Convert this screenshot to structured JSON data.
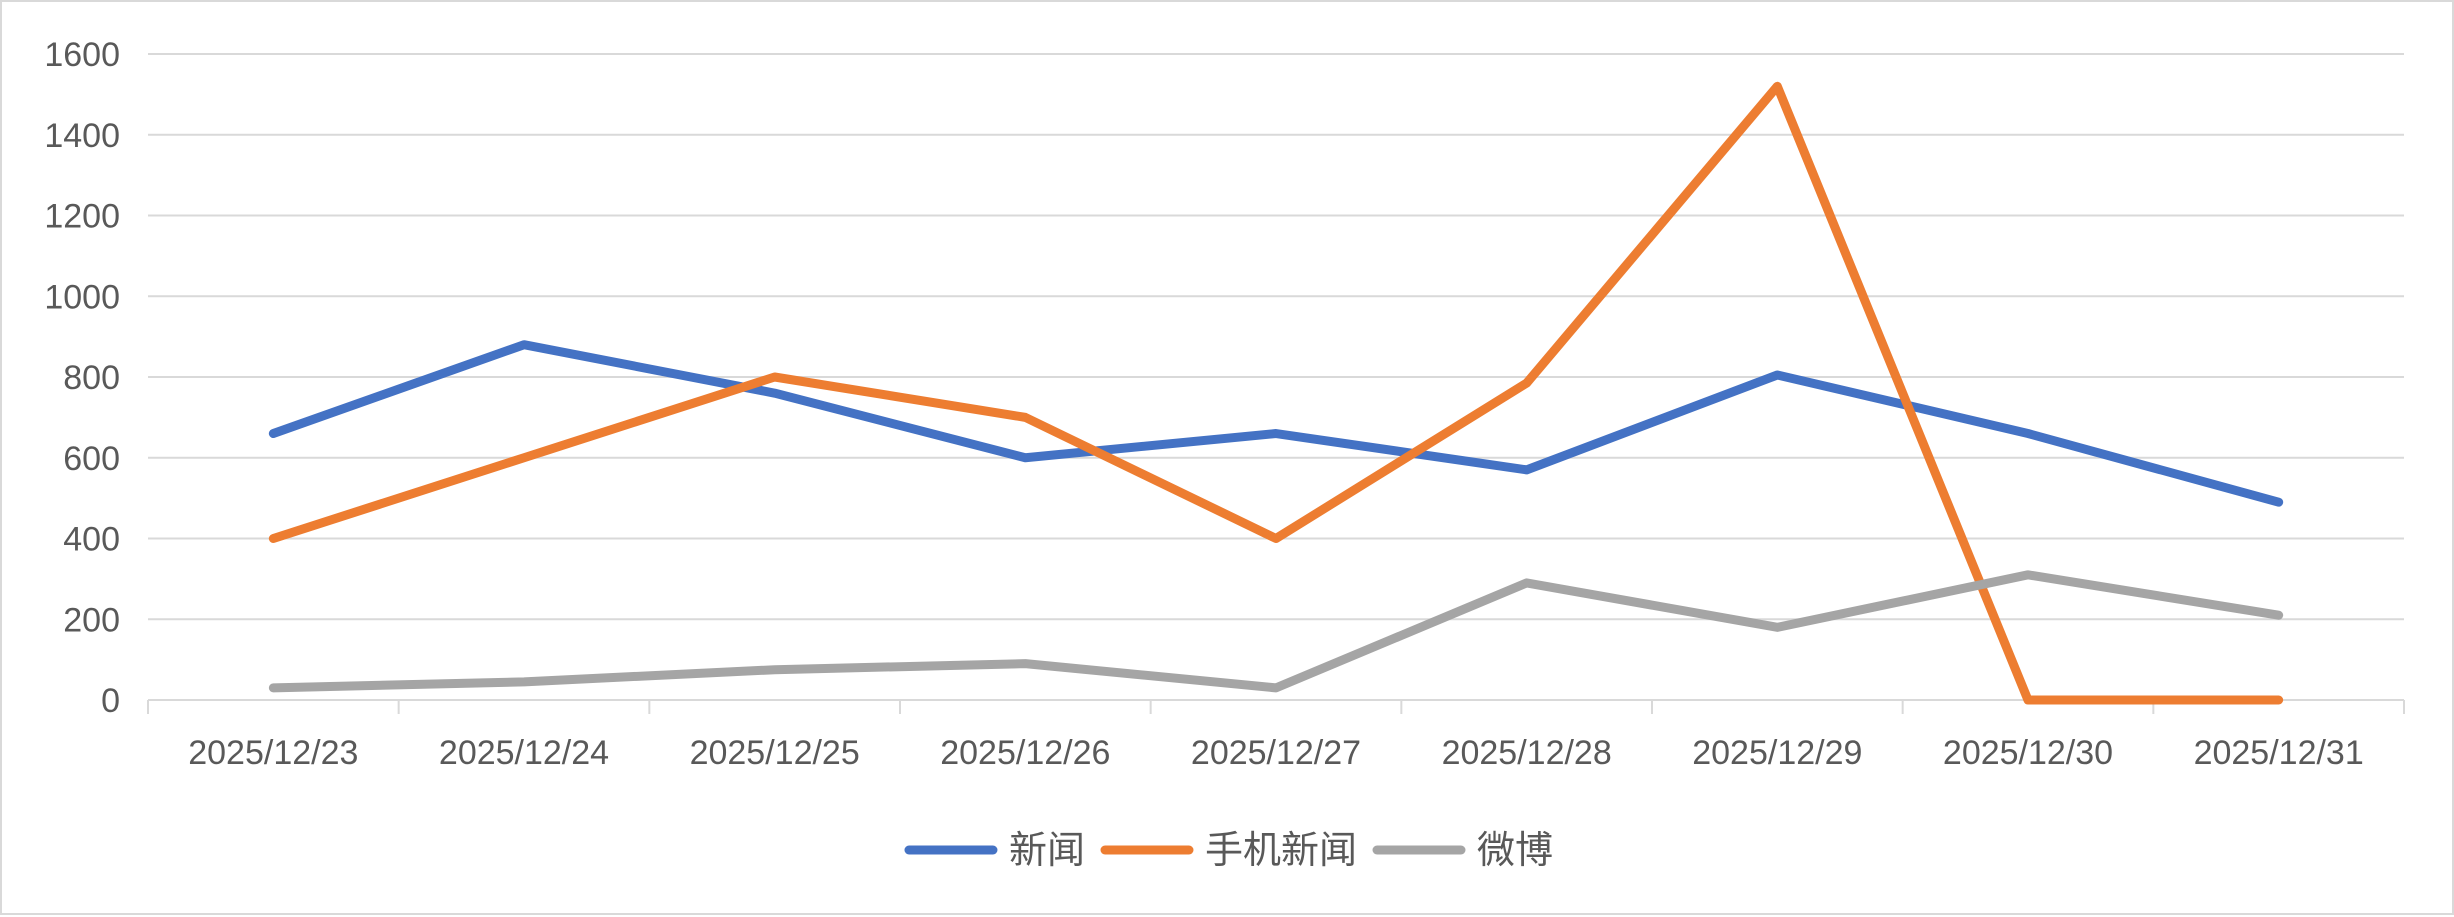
{
  "chart_data": {
    "type": "line",
    "title": "",
    "xlabel": "",
    "ylabel": "",
    "categories": [
      "2025/12/23",
      "2025/12/24",
      "2025/12/25",
      "2025/12/26",
      "2025/12/27",
      "2025/12/28",
      "2025/12/29",
      "2025/12/30",
      "2025/12/31"
    ],
    "ylim": [
      0,
      1600
    ],
    "yticks": [
      "0",
      "200",
      "400",
      "600",
      "800",
      "1000",
      "1200",
      "1400",
      "1600"
    ],
    "grid": true,
    "legend_position": "bottom",
    "series": [
      {
        "name": "新闻",
        "color": "#4472C4",
        "values": [
          660,
          880,
          760,
          600,
          660,
          570,
          805,
          660,
          490
        ]
      },
      {
        "name": "手机新闻",
        "color": "#ED7D31",
        "values": [
          400,
          600,
          800,
          700,
          400,
          785,
          1520,
          0,
          0
        ]
      },
      {
        "name": "微博",
        "color": "#A5A5A5",
        "values": [
          30,
          45,
          75,
          90,
          30,
          290,
          180,
          310,
          210
        ]
      }
    ]
  }
}
